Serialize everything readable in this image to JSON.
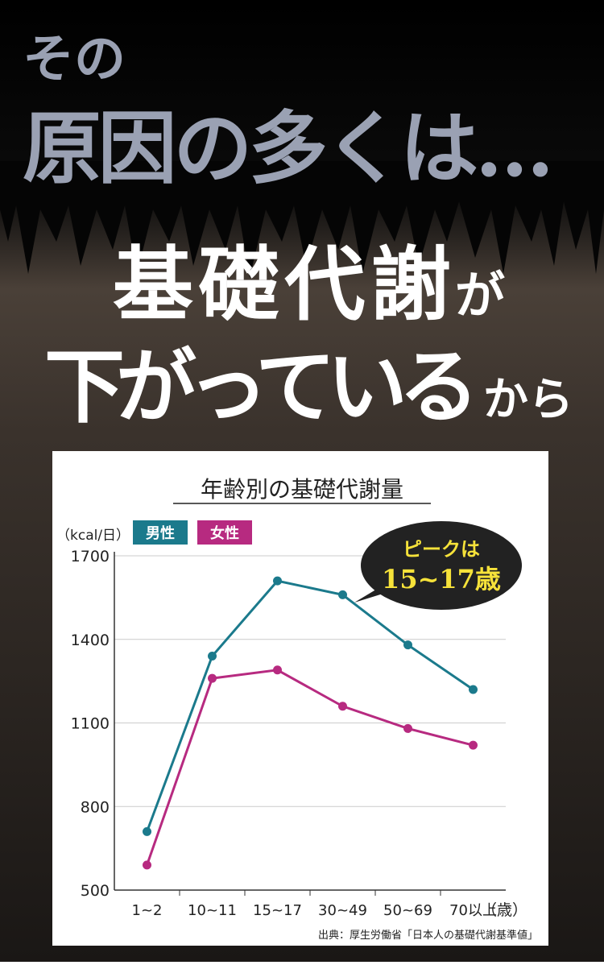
{
  "header": {
    "line1": "その",
    "line2": "原因の多くは…",
    "line3_main": "基礎代謝",
    "line3_small": "が",
    "line4_main": "下がっている",
    "line4_small": "から"
  },
  "chart_data": {
    "type": "line",
    "title": "年齢別の基礎代謝量",
    "y_unit": "（kcal/日）",
    "x_unit": "（歳）",
    "categories": [
      "1~2",
      "10~11",
      "15~17",
      "30~49",
      "50~69",
      "70以上"
    ],
    "series": [
      {
        "name": "男性",
        "color": "#1b7a8c",
        "values": [
          710,
          1340,
          1610,
          1560,
          1380,
          1220
        ]
      },
      {
        "name": "女性",
        "color": "#b72a80",
        "values": [
          590,
          1260,
          1290,
          1160,
          1080,
          1020
        ]
      }
    ],
    "ylim": [
      500,
      1700
    ],
    "yticks": [
      500,
      800,
      1100,
      1400,
      1700
    ],
    "grid": true,
    "callout": {
      "line1": "ピークは",
      "line2": "15~17歳"
    },
    "source": "出典：厚生労働省「日本人の基礎代謝基準値」"
  }
}
